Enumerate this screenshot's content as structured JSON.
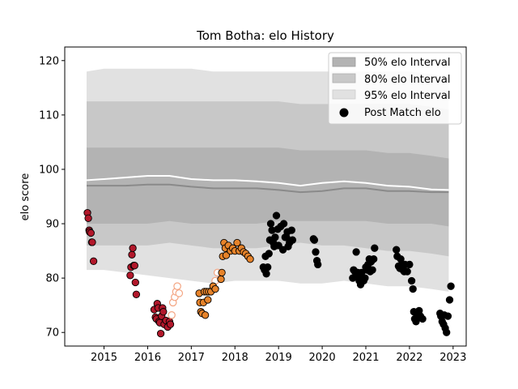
{
  "chart_data": {
    "type": "scatter",
    "title": "Tom Botha: elo History",
    "xlabel": "",
    "ylabel": "elo score",
    "xlim": [
      2014.1,
      2023.3
    ],
    "ylim": [
      67.5,
      122.5
    ],
    "x_ticks": [
      2015,
      2016,
      2017,
      2018,
      2019,
      2020,
      2021,
      2022,
      2023
    ],
    "y_ticks": [
      70,
      80,
      90,
      100,
      110,
      120
    ],
    "legend_position": "top-right",
    "legend": [
      {
        "label": "50% elo Interval",
        "color": "#b3b3b3",
        "kind": "band"
      },
      {
        "label": "80% elo Interval",
        "color": "#c8c8c8",
        "kind": "band"
      },
      {
        "label": "95% elo Interval",
        "color": "#e1e1e1",
        "kind": "band"
      },
      {
        "label": "Post Match elo",
        "color": "#000000",
        "kind": "point"
      }
    ],
    "bands": {
      "x": [
        2014.6,
        2015.0,
        2015.5,
        2016.0,
        2016.5,
        2017.0,
        2017.5,
        2018.0,
        2018.5,
        2019.0,
        2019.5,
        2020.0,
        2020.5,
        2021.0,
        2021.5,
        2022.0,
        2022.5,
        2022.9
      ],
      "p95": {
        "lower": [
          81.5,
          81.5,
          81.0,
          80.5,
          80.0,
          79.5,
          79.0,
          79.5,
          79.5,
          79.5,
          79.0,
          79.0,
          79.5,
          79.0,
          78.5,
          78.5,
          78.0,
          77.5
        ],
        "upper": [
          118.0,
          118.5,
          118.5,
          118.5,
          118.5,
          118.5,
          118.0,
          118.0,
          118.0,
          118.0,
          118.0,
          118.0,
          118.0,
          118.0,
          118.0,
          118.0,
          117.5,
          117.0
        ]
      },
      "p80": {
        "lower": [
          86.0,
          86.0,
          86.0,
          86.0,
          86.5,
          86.0,
          85.5,
          85.5,
          85.5,
          86.0,
          86.5,
          86.0,
          86.0,
          85.5,
          85.0,
          85.0,
          84.5,
          84.0
        ],
        "upper": [
          112.5,
          112.5,
          112.5,
          112.5,
          112.5,
          112.5,
          112.5,
          112.5,
          112.5,
          112.5,
          112.0,
          112.0,
          112.0,
          112.0,
          112.0,
          112.0,
          111.5,
          111.0
        ]
      },
      "p50": {
        "lower": [
          90.0,
          90.0,
          90.0,
          90.0,
          90.5,
          90.0,
          90.0,
          90.0,
          90.0,
          90.5,
          90.5,
          90.5,
          90.5,
          90.5,
          90.0,
          90.0,
          90.0,
          89.5
        ],
        "upper": [
          104.0,
          104.0,
          104.0,
          104.0,
          104.0,
          104.0,
          104.0,
          104.0,
          104.0,
          104.0,
          103.5,
          103.5,
          103.5,
          103.5,
          103.0,
          103.0,
          102.5,
          102.0
        ]
      },
      "median": [
        97.0,
        97.0,
        97.0,
        97.2,
        97.2,
        96.8,
        96.5,
        96.5,
        96.5,
        96.2,
        95.8,
        96.0,
        96.5,
        96.5,
        96.0,
        96.0,
        95.8,
        95.8
      ],
      "mean": [
        98.0,
        98.2,
        98.5,
        98.8,
        98.8,
        98.2,
        98.0,
        98.0,
        97.8,
        97.5,
        97.0,
        97.5,
        97.8,
        97.5,
        97.0,
        96.8,
        96.3,
        96.2
      ]
    },
    "series": [
      {
        "color": "#b2182b",
        "filled": true,
        "x": [
          2014.62,
          2014.64,
          2014.66,
          2014.67,
          2014.7,
          2014.72,
          2014.73,
          2014.76,
          2015.6,
          2015.62,
          2015.64,
          2015.66,
          2015.68,
          2015.7,
          2015.72,
          2015.74,
          2016.15,
          2016.18,
          2016.2,
          2016.22,
          2016.24,
          2016.26,
          2016.28,
          2016.3,
          2016.32,
          2016.34,
          2016.36,
          2016.38,
          2016.42,
          2016.46,
          2016.5,
          2016.52
        ],
        "y": [
          92.0,
          91.0,
          88.8,
          88.5,
          88.3,
          86.6,
          86.6,
          83.1,
          80.5,
          82.0,
          84.3,
          85.5,
          82.3,
          82.3,
          79.2,
          77.0,
          74.2,
          72.8,
          72.5,
          75.3,
          74.5,
          72.0,
          71.8,
          69.8,
          73.0,
          74.5,
          73.8,
          71.5,
          72.2,
          71.0,
          72.0,
          71.5
        ]
      },
      {
        "color": "#f4a582",
        "filled": false,
        "x": [
          2016.55,
          2016.58,
          2016.62,
          2016.65,
          2016.68,
          2016.72,
          2017.55,
          2017.6
        ],
        "y": [
          73.2,
          75.5,
          76.5,
          77.5,
          78.5,
          77.2,
          79.5,
          81.0
        ]
      },
      {
        "color": "#e6832a",
        "filled": true,
        "x": [
          2017.18,
          2017.2,
          2017.22,
          2017.25,
          2017.28,
          2017.3,
          2017.32,
          2017.35,
          2017.38,
          2017.4,
          2017.45,
          2017.5,
          2017.55,
          2017.68,
          2017.7,
          2017.72,
          2017.75,
          2017.78,
          2017.8,
          2017.85,
          2017.9,
          2017.95,
          2018.0,
          2018.05,
          2018.1,
          2018.15,
          2018.2,
          2018.25,
          2018.3,
          2018.35
        ],
        "y": [
          77.2,
          75.5,
          73.8,
          73.5,
          75.5,
          77.5,
          73.2,
          77.5,
          76.0,
          77.5,
          77.5,
          78.5,
          78.0,
          79.8,
          81.0,
          84.0,
          86.5,
          85.5,
          84.2,
          86.0,
          85.0,
          85.5,
          85.0,
          86.5,
          85.0,
          85.5,
          84.8,
          84.5,
          84.0,
          83.5
        ]
      },
      {
        "color": "#000000",
        "filled": true,
        "x": [
          2018.65,
          2018.68,
          2018.7,
          2018.72,
          2018.75,
          2018.78,
          2018.8,
          2018.82,
          2018.85,
          2018.88,
          2018.9,
          2018.92,
          2018.95,
          2018.98,
          2019.0,
          2019.05,
          2019.1,
          2019.12,
          2019.15,
          2019.18,
          2019.2,
          2019.22,
          2019.25,
          2019.3,
          2019.32,
          2019.8,
          2019.82,
          2019.85,
          2019.88,
          2019.9,
          2020.7,
          2020.72,
          2020.75,
          2020.78,
          2020.8,
          2020.82,
          2020.85,
          2020.88,
          2020.9,
          2020.92,
          2020.95,
          2020.98,
          2021.0,
          2021.02,
          2021.05,
          2021.08,
          2021.1,
          2021.12,
          2021.15,
          2021.18,
          2021.2,
          2021.7,
          2021.72,
          2021.75,
          2021.78,
          2021.8,
          2021.82,
          2021.85,
          2021.88,
          2021.9,
          2021.95,
          2022.0,
          2022.05,
          2022.08,
          2022.1,
          2022.12,
          2022.15,
          2022.18,
          2022.2,
          2022.22,
          2022.25,
          2022.3,
          2022.7,
          2022.72,
          2022.75,
          2022.78,
          2022.8,
          2022.82,
          2022.85,
          2022.88,
          2022.92,
          2022.95
        ],
        "y": [
          82.0,
          81.5,
          84.0,
          80.8,
          82.0,
          84.5,
          87.0,
          90.0,
          88.8,
          86.5,
          85.8,
          87.5,
          91.5,
          89.0,
          86.0,
          89.5,
          85.2,
          90.0,
          87.5,
          87.5,
          88.5,
          85.8,
          86.5,
          88.8,
          87.0,
          87.2,
          87.0,
          84.8,
          83.2,
          82.5,
          80.0,
          81.5,
          81.2,
          84.8,
          80.5,
          81.0,
          79.5,
          78.8,
          81.0,
          80.2,
          79.5,
          80.0,
          82.0,
          81.5,
          82.5,
          83.5,
          81.2,
          83.0,
          81.5,
          83.5,
          85.5,
          85.2,
          84.0,
          82.2,
          81.8,
          83.5,
          82.5,
          81.5,
          81.2,
          82.5,
          81.2,
          82.5,
          79.5,
          78.0,
          73.8,
          72.5,
          72.0,
          73.5,
          73.8,
          74.0,
          73.0,
          72.5,
          73.5,
          73.0,
          72.0,
          71.5,
          73.2,
          70.8,
          70.0,
          73.0,
          76.0,
          78.5
        ]
      }
    ]
  }
}
